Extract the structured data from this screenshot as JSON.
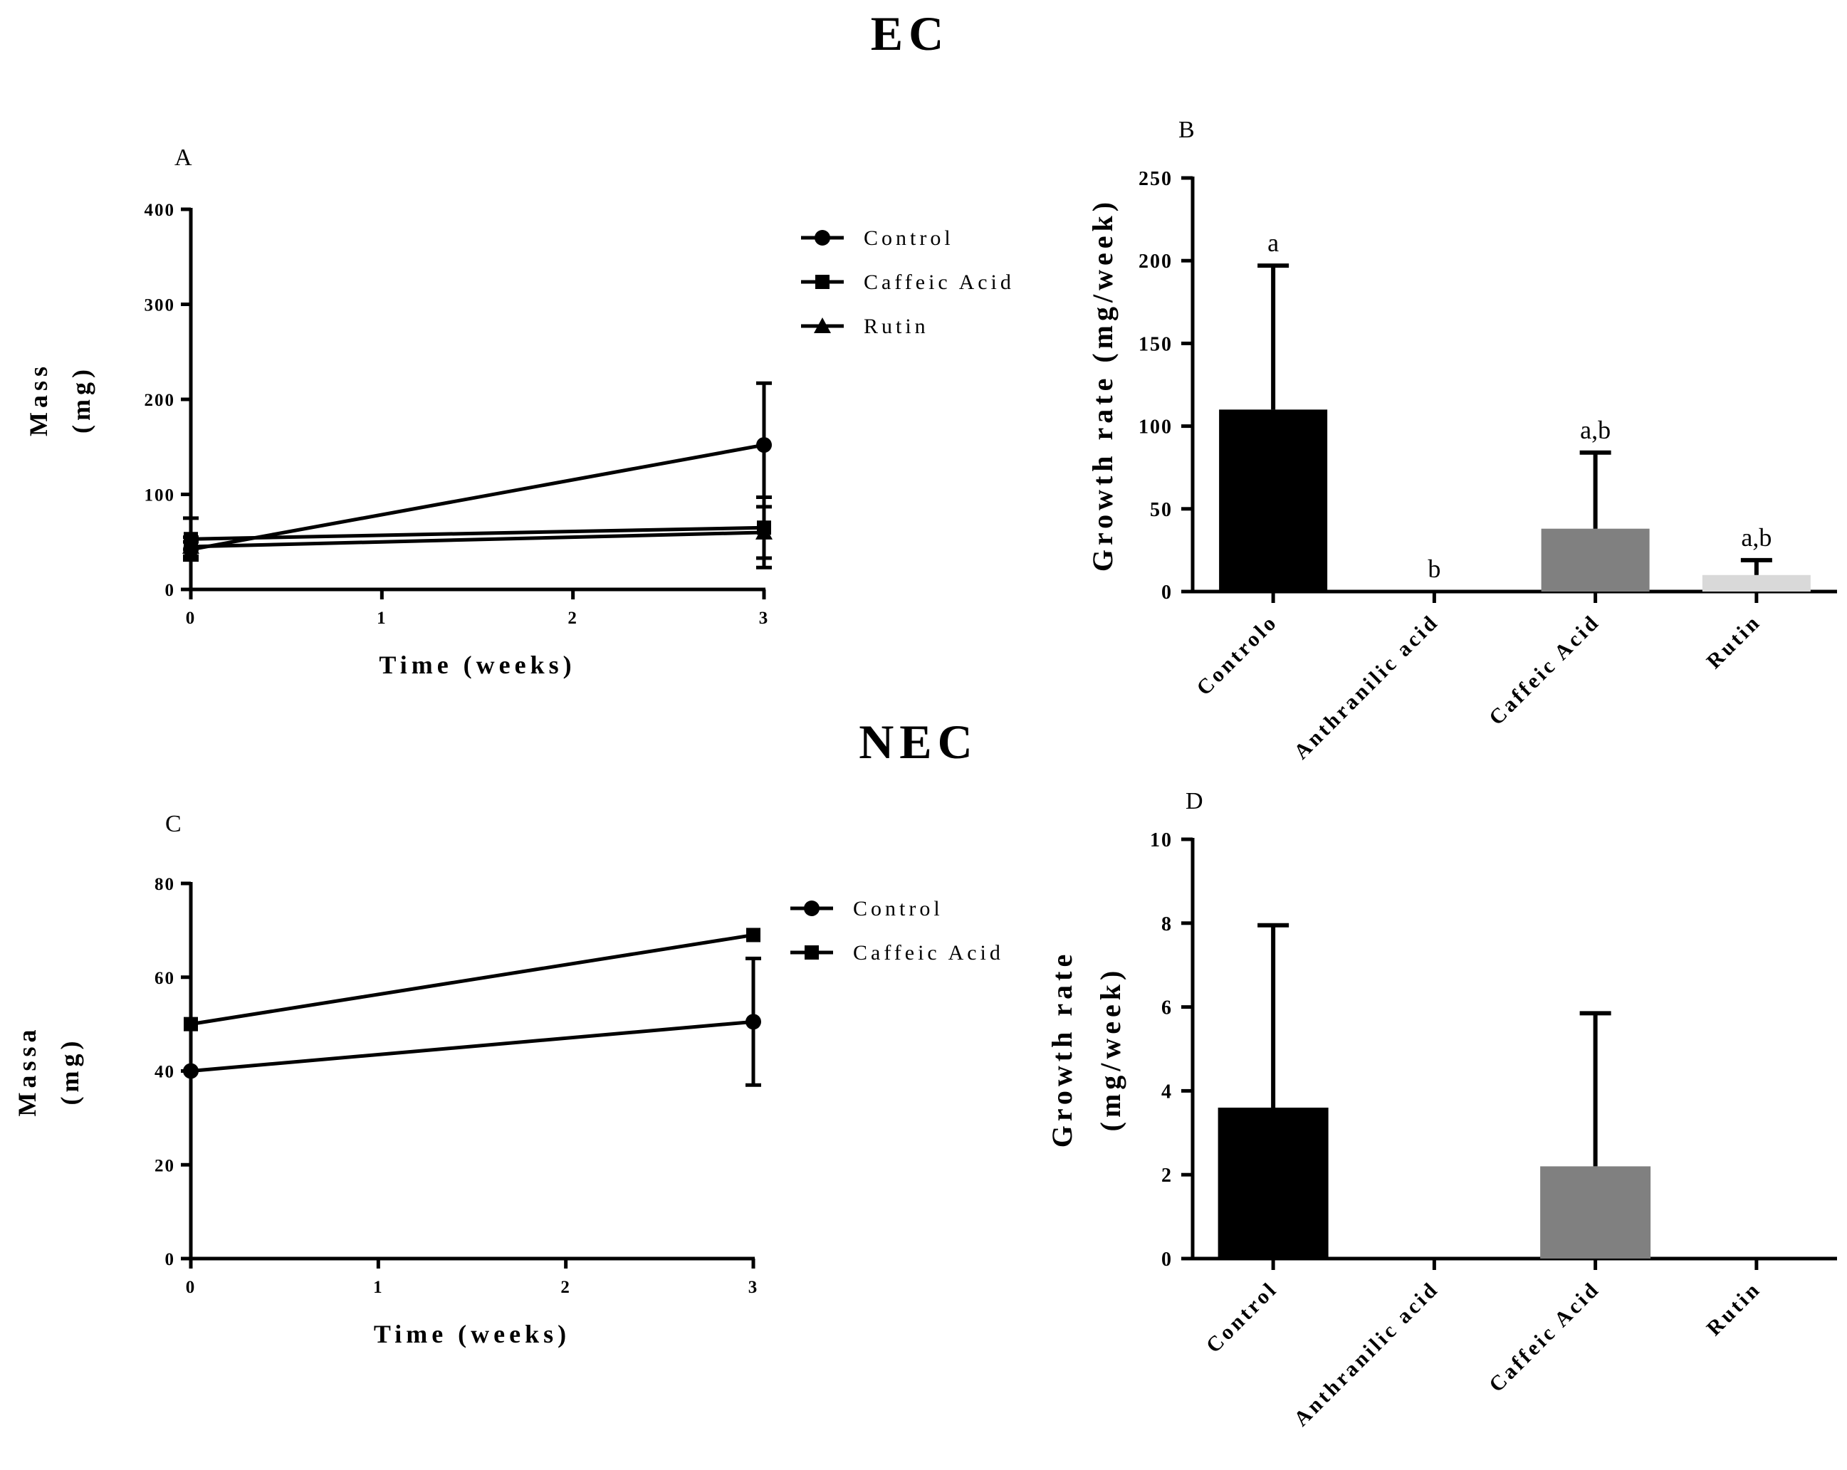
{
  "sections": {
    "top": "EC",
    "bottom": "NEC"
  },
  "chart_data": [
    {
      "id": "A",
      "type": "line",
      "panel_label": "A",
      "xlabel": "Time (weeks)",
      "ylabel_lines": [
        "Mass",
        "(mg)"
      ],
      "x_ticks": [
        0,
        1,
        2,
        3
      ],
      "y_ticks": [
        0,
        100,
        200,
        300,
        400
      ],
      "xlim": [
        0,
        3
      ],
      "ylim": [
        0,
        400
      ],
      "series": [
        {
          "name": "Control",
          "marker": "circle",
          "x": [
            0,
            3
          ],
          "y": [
            42,
            152
          ],
          "err": [
            8,
            65
          ]
        },
        {
          "name": "Caffeic Acid",
          "marker": "square",
          "x": [
            0,
            3
          ],
          "y": [
            53,
            65
          ],
          "err": [
            22,
            32
          ]
        },
        {
          "name": "Rutin",
          "marker": "triangle",
          "x": [
            0,
            3
          ],
          "y": [
            45,
            60
          ],
          "err": [
            10,
            37
          ]
        }
      ]
    },
    {
      "id": "B",
      "type": "bar",
      "panel_label": "B",
      "ylabel": "Growth rate (mg/week)",
      "categories": [
        "Controlo",
        "Anthranilic acid",
        "Caffeic Acid",
        "Rutin"
      ],
      "values": [
        110,
        0,
        38,
        10
      ],
      "errors": [
        87,
        0,
        46,
        9
      ],
      "colors": [
        "#000000",
        "#000000",
        "#808080",
        "#d9d9d9"
      ],
      "significance": [
        "a",
        "b",
        "a,b",
        "a,b"
      ],
      "y_ticks": [
        0,
        50,
        100,
        150,
        200,
        250
      ],
      "ylim": [
        0,
        250
      ]
    },
    {
      "id": "C",
      "type": "line",
      "panel_label": "C",
      "xlabel": "Time (weeks)",
      "ylabel_lines": [
        "Massa",
        "(mg)"
      ],
      "x_ticks": [
        0,
        1,
        2,
        3
      ],
      "y_ticks": [
        0,
        20,
        40,
        60,
        80
      ],
      "xlim": [
        0,
        3
      ],
      "ylim": [
        0,
        80
      ],
      "series": [
        {
          "name": "Control",
          "marker": "circle",
          "x": [
            0,
            3
          ],
          "y": [
            40,
            50.5
          ],
          "err": [
            0,
            13.5
          ]
        },
        {
          "name": "Caffeic Acid",
          "marker": "square",
          "x": [
            0,
            3
          ],
          "y": [
            50,
            69
          ],
          "err": [
            0,
            0
          ]
        }
      ]
    },
    {
      "id": "D",
      "type": "bar",
      "panel_label": "D",
      "ylabel_lines": [
        "Growth rate",
        "(mg/week)"
      ],
      "categories": [
        "Control",
        "Anthranilic acid",
        "Caffeic Acid",
        "Rutin"
      ],
      "values": [
        3.6,
        0,
        2.2,
        0
      ],
      "errors": [
        4.35,
        0,
        3.65,
        0
      ],
      "colors": [
        "#000000",
        "#000000",
        "#808080",
        "#d9d9d9"
      ],
      "y_ticks": [
        0,
        2,
        4,
        6,
        8,
        10
      ],
      "ylim": [
        0,
        10
      ]
    }
  ]
}
